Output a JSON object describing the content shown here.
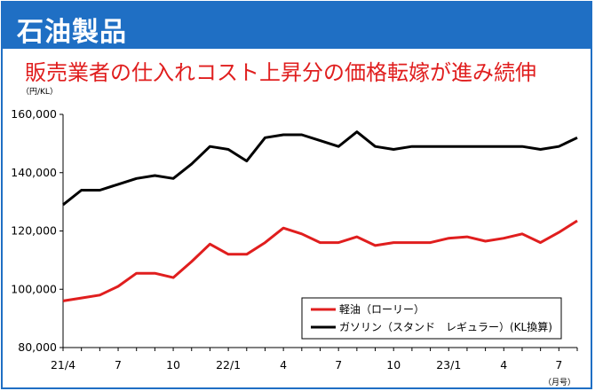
{
  "header": {
    "title": "石油製品",
    "subtitle": "販売業者の仕入れコスト上昇分の価格転嫁が進み続伸"
  },
  "colors": {
    "header_bg": "#1f6fc4",
    "subtitle": "#e01e1e",
    "series_kerosene": "#e01e1e",
    "series_gasoline": "#000000"
  },
  "chart_data": {
    "type": "line",
    "title": "",
    "ylabel": "（円/KL）",
    "xlabel": "（月号）",
    "ylim": [
      80000,
      160000
    ],
    "yticks": [
      80000,
      100000,
      120000,
      140000,
      160000
    ],
    "ytick_labels": [
      "80,000",
      "100,000",
      "120,000",
      "140,000",
      "160,000"
    ],
    "x": [
      "21/4",
      "21/5",
      "21/6",
      "21/7",
      "21/8",
      "21/9",
      "21/10",
      "21/11",
      "21/12",
      "22/1",
      "22/2",
      "22/3",
      "22/4",
      "22/5",
      "22/6",
      "22/7",
      "22/8",
      "22/9",
      "22/10",
      "22/11",
      "22/12",
      "23/1",
      "23/2",
      "23/3",
      "23/4",
      "23/5",
      "23/6",
      "23/7",
      "23/8"
    ],
    "xtick_labels": [
      {
        "index": 0,
        "label": "21/4"
      },
      {
        "index": 3,
        "label": "7"
      },
      {
        "index": 6,
        "label": "10"
      },
      {
        "index": 9,
        "label": "22/1"
      },
      {
        "index": 12,
        "label": "4"
      },
      {
        "index": 15,
        "label": "7"
      },
      {
        "index": 18,
        "label": "10"
      },
      {
        "index": 21,
        "label": "23/1"
      },
      {
        "index": 24,
        "label": "4"
      },
      {
        "index": 27,
        "label": "7"
      }
    ],
    "legend_position": "bottom-right",
    "grid": false,
    "series": [
      {
        "name": "軽油（ローリー）",
        "color": "#e01e1e",
        "values": [
          96000,
          97000,
          98000,
          101000,
          105500,
          105500,
          104000,
          109500,
          115500,
          112000,
          112000,
          116000,
          121000,
          119000,
          116000,
          116000,
          118000,
          115000,
          116000,
          116000,
          116000,
          117500,
          118000,
          116500,
          117500,
          119000,
          116000,
          119500,
          123500
        ]
      },
      {
        "name": "ガソリン（スタンド　レギュラー）(KL換算)",
        "color": "#000000",
        "values": [
          129000,
          134000,
          134000,
          136000,
          138000,
          139000,
          138000,
          143000,
          149000,
          148000,
          144000,
          152000,
          153000,
          153000,
          151000,
          149000,
          154000,
          149000,
          148000,
          149000,
          149000,
          149000,
          149000,
          149000,
          149000,
          149000,
          148000,
          149000,
          152000
        ]
      }
    ]
  }
}
